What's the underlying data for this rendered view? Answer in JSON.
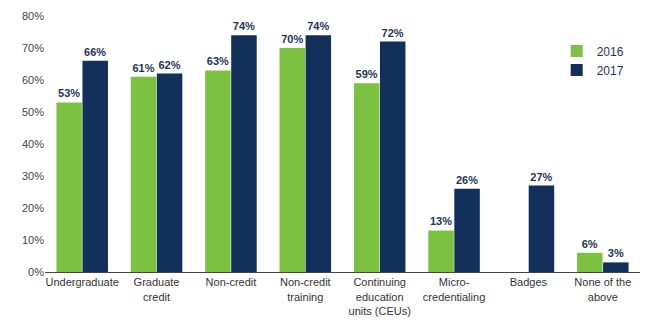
{
  "chart_data": {
    "type": "bar",
    "categories": [
      "Undergraduate",
      "Graduate credit",
      "Non-credit",
      "Non-credit training",
      "Continuing education units (CEUs)",
      "Micro-credentialing",
      "Badges",
      "None of the above"
    ],
    "series": [
      {
        "name": "2016",
        "color": "#7dc142",
        "values": [
          53,
          61,
          63,
          70,
          59,
          13,
          null,
          6
        ],
        "value_labels": [
          "53%",
          "61%",
          "63%",
          "70%",
          "59%",
          "13%",
          null,
          "6%"
        ]
      },
      {
        "name": "2017",
        "color": "#13305a",
        "values": [
          66,
          62,
          74,
          74,
          72,
          26,
          27,
          3
        ],
        "value_labels": [
          "66%",
          "62%",
          "74%",
          "74%",
          "72%",
          "26%",
          "27%",
          "3%"
        ]
      }
    ],
    "ylim": [
      0,
      80
    ],
    "yticks": [
      {
        "value": 0,
        "label": "0%"
      },
      {
        "value": 10,
        "label": "10%"
      },
      {
        "value": 20,
        "label": "20%"
      },
      {
        "value": 30,
        "label": "30%"
      },
      {
        "value": 40,
        "label": "40%"
      },
      {
        "value": 50,
        "label": "50%"
      },
      {
        "value": 60,
        "label": "60%"
      },
      {
        "value": 70,
        "label": "70%"
      },
      {
        "value": 80,
        "label": "80%"
      }
    ],
    "grid": false,
    "legend": "upper right",
    "data_labels": true
  }
}
